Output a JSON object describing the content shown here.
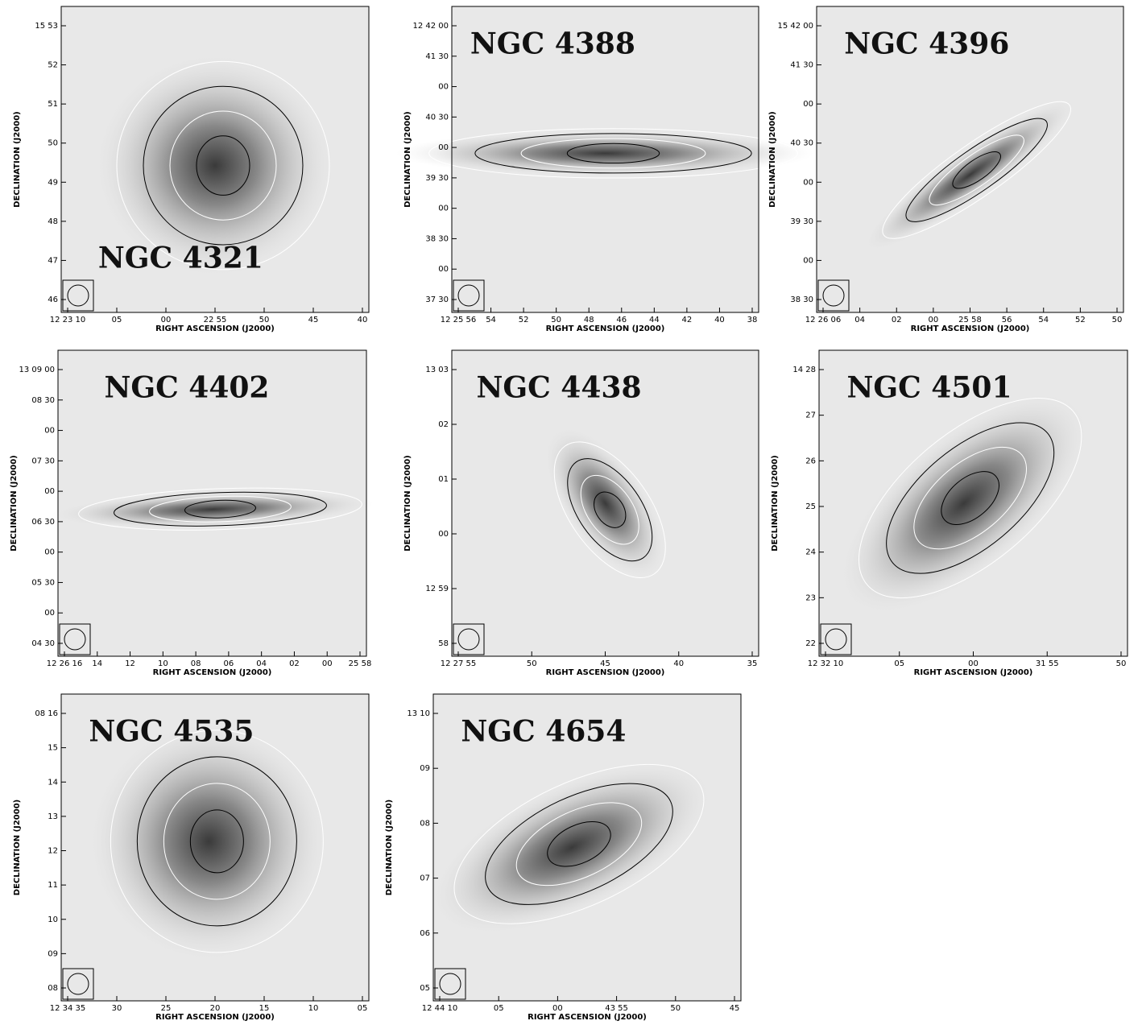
{
  "panels": [
    {
      "title": "NGC 4321",
      "x_label": "RIGHT ASCENSION (J2000)",
      "y_label": "DECLINATION (J2000)",
      "xticks": [
        "12 23 10",
        "05",
        "00",
        "22 55",
        "50",
        "45",
        "40"
      ],
      "yticks": [
        "15 53",
        "52",
        "51",
        "50",
        "49",
        "48",
        "47",
        "46"
      ]
    },
    {
      "title": "NGC 4388",
      "x_label": "RIGHT ASCENSION (J2000)",
      "y_label": "DECLINATION (J2000)",
      "xticks": [
        "12 25 56",
        "54",
        "52",
        "50",
        "48",
        "46",
        "44",
        "42",
        "40",
        "38"
      ],
      "yticks": [
        "12 42 00",
        "41 30",
        "00",
        "40 30",
        "00",
        "39 30",
        "00",
        "38 30",
        "00",
        "37 30"
      ]
    },
    {
      "title": "NGC 4396",
      "x_label": "RIGHT ASCENSION (J2000)",
      "y_label": "DECLINATION (J2000)",
      "xticks": [
        "12 26 06",
        "04",
        "02",
        "00",
        "25 58",
        "56",
        "54",
        "52",
        "50"
      ],
      "yticks": [
        "15 42 00",
        "41 30",
        "00",
        "40 30",
        "00",
        "39 30",
        "00",
        "38 30"
      ]
    },
    {
      "title": "NGC 4402",
      "x_label": "RIGHT ASCENSION (J2000)",
      "y_label": "DECLINATION (J2000)",
      "xticks": [
        "12 26 16",
        "14",
        "12",
        "10",
        "08",
        "06",
        "04",
        "02",
        "00",
        "25 58"
      ],
      "yticks": [
        "13 09 00",
        "08 30",
        "00",
        "07 30",
        "00",
        "06 30",
        "00",
        "05 30",
        "00",
        "04 30"
      ]
    },
    {
      "title": "NGC 4438",
      "x_label": "RIGHT ASCENSION (J2000)",
      "y_label": "DECLINATION (J2000)",
      "xticks": [
        "12 27 55",
        "50",
        "45",
        "40",
        "35"
      ],
      "yticks": [
        "13 03",
        "02",
        "01",
        "00",
        "12 59",
        "58"
      ]
    },
    {
      "title": "NGC 4501",
      "x_label": "RIGHT ASCENSION (J2000)",
      "y_label": "DECLINATION (J2000)",
      "xticks": [
        "12 32 10",
        "05",
        "00",
        "31 55",
        "50"
      ],
      "yticks": [
        "14 28",
        "27",
        "26",
        "25",
        "24",
        "23",
        "22"
      ]
    },
    {
      "title": "NGC 4535",
      "x_label": "RIGHT ASCENSION (J2000)",
      "y_label": "DECLINATION (J2000)",
      "xticks": [
        "12 34 35",
        "30",
        "25",
        "20",
        "15",
        "10",
        "05"
      ],
      "yticks": [
        "08 16",
        "15",
        "14",
        "13",
        "12",
        "11",
        "10",
        "09",
        "08"
      ]
    },
    {
      "title": "NGC 4654",
      "x_label": "RIGHT ASCENSION (J2000)",
      "y_label": "DECLINATION (J2000)",
      "xticks": [
        "12 44 10",
        "05",
        "00",
        "43 55",
        "50",
        "45"
      ],
      "yticks": [
        "13 10",
        "09",
        "08",
        "07",
        "06",
        "05"
      ]
    }
  ]
}
